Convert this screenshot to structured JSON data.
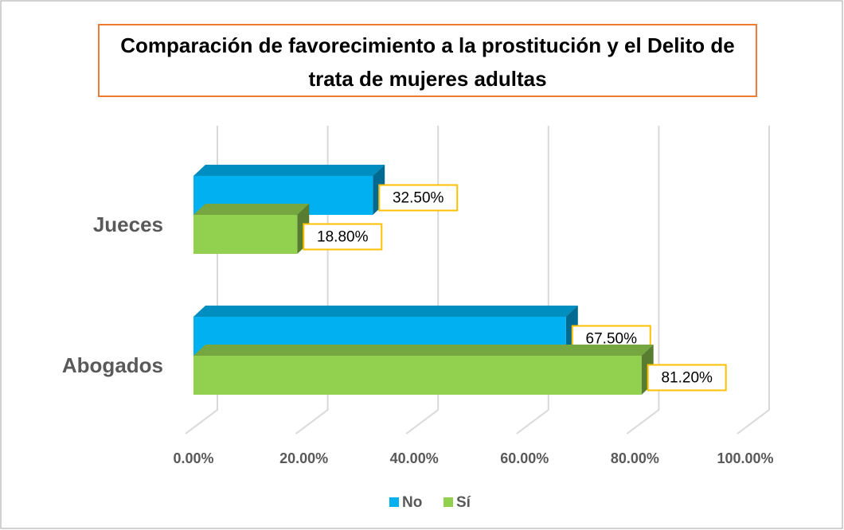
{
  "chart_data": {
    "type": "bar3d_horizontal",
    "title": "Comparación de favorecimiento a la prostitución y el Delito de trata de mujeres adultas",
    "categories": [
      "Jueces",
      "Abogados"
    ],
    "series": [
      {
        "name": "No",
        "color": "#00B0F0",
        "values": [
          32.5,
          67.5
        ],
        "value_labels": [
          "32.50%",
          "67.50%"
        ]
      },
      {
        "name": "Sí",
        "color": "#92D050",
        "values": [
          18.8,
          81.2
        ],
        "value_labels": [
          "18.80%",
          "81.20%"
        ]
      }
    ],
    "xlim": [
      0,
      100
    ],
    "xticks": [
      {
        "value": 0,
        "label": "0.00%"
      },
      {
        "value": 20,
        "label": "20.00%"
      },
      {
        "value": 40,
        "label": "40.00%"
      },
      {
        "value": 60,
        "label": "60.00%"
      },
      {
        "value": 80,
        "label": "80.00%"
      },
      {
        "value": 100,
        "label": "100.00%"
      }
    ],
    "grid": true,
    "legend": "bottom"
  }
}
